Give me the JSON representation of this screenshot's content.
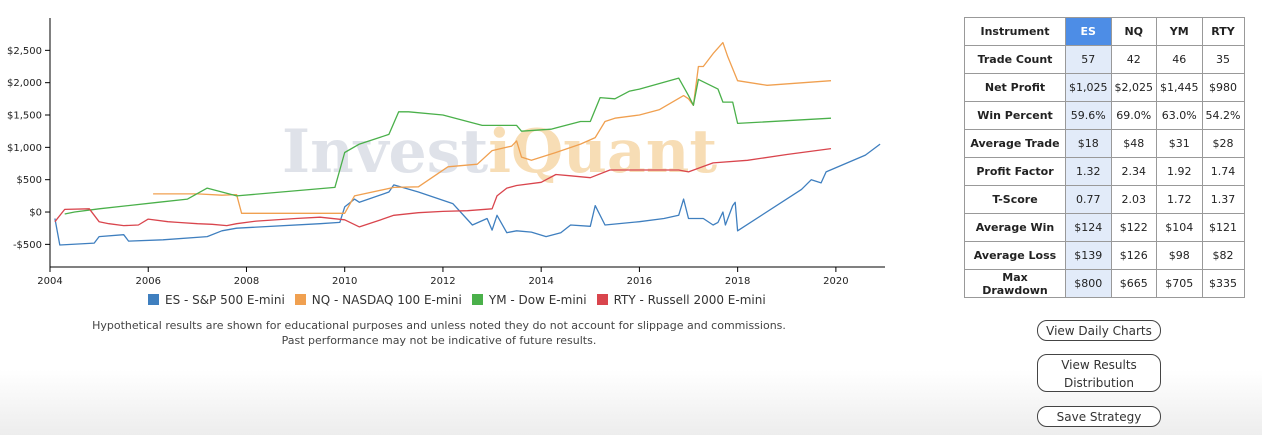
{
  "watermark": {
    "part1": "Invest",
    "part2": "iQuant"
  },
  "chart_data": {
    "type": "line",
    "title": "",
    "xlabel": "",
    "ylabel": "",
    "xlim": [
      2004,
      2021
    ],
    "ylim": [
      -850,
      3000
    ],
    "x_ticks": [
      2004,
      2006,
      2008,
      2010,
      2012,
      2014,
      2016,
      2018,
      2020
    ],
    "y_ticks": [
      -500,
      0,
      500,
      1000,
      1500,
      2000,
      2500
    ],
    "y_tick_labels": [
      "-$500",
      "$0",
      "$500",
      "$1,000",
      "$1,500",
      "$2,000",
      "$2,500"
    ],
    "grid": false,
    "legend_position": "bottom",
    "series": [
      {
        "name": "ES - S&P 500 E-mini",
        "color": "#3f7fbf",
        "points": [
          [
            2004.1,
            -100
          ],
          [
            2004.2,
            -510
          ],
          [
            2004.9,
            -480
          ],
          [
            2005.0,
            -380
          ],
          [
            2005.5,
            -350
          ],
          [
            2005.6,
            -450
          ],
          [
            2006.3,
            -430
          ],
          [
            2007.2,
            -380
          ],
          [
            2007.5,
            -290
          ],
          [
            2007.8,
            -250
          ],
          [
            2009.5,
            -180
          ],
          [
            2009.9,
            -160
          ],
          [
            2010.0,
            80
          ],
          [
            2010.2,
            200
          ],
          [
            2010.3,
            150
          ],
          [
            2010.9,
            310
          ],
          [
            2011.0,
            420
          ],
          [
            2011.5,
            310
          ],
          [
            2012.2,
            130
          ],
          [
            2012.6,
            -200
          ],
          [
            2012.9,
            -100
          ],
          [
            2013.0,
            -280
          ],
          [
            2013.1,
            -50
          ],
          [
            2013.3,
            -320
          ],
          [
            2013.5,
            -290
          ],
          [
            2013.8,
            -310
          ],
          [
            2014.1,
            -380
          ],
          [
            2014.4,
            -320
          ],
          [
            2014.6,
            -200
          ],
          [
            2015.0,
            -220
          ],
          [
            2015.1,
            100
          ],
          [
            2015.3,
            -200
          ],
          [
            2016.0,
            -150
          ],
          [
            2016.5,
            -100
          ],
          [
            2016.8,
            -50
          ],
          [
            2016.9,
            200
          ],
          [
            2017.0,
            -100
          ],
          [
            2017.3,
            -100
          ],
          [
            2017.5,
            -200
          ],
          [
            2017.6,
            -160
          ],
          [
            2017.7,
            0
          ],
          [
            2017.75,
            -200
          ],
          [
            2017.9,
            100
          ],
          [
            2017.95,
            150
          ],
          [
            2018.0,
            -290
          ],
          [
            2019.3,
            350
          ],
          [
            2019.5,
            500
          ],
          [
            2019.7,
            450
          ],
          [
            2019.8,
            620
          ],
          [
            2020.6,
            880
          ],
          [
            2020.9,
            1050
          ]
        ]
      },
      {
        "name": "NQ - NASDAQ 100 E-mini",
        "color": "#f0a050",
        "points": [
          [
            2006.1,
            280
          ],
          [
            2007.0,
            280
          ],
          [
            2007.5,
            260
          ],
          [
            2007.8,
            270
          ],
          [
            2007.9,
            -20
          ],
          [
            2010.0,
            -20
          ],
          [
            2010.2,
            250
          ],
          [
            2011.0,
            380
          ],
          [
            2011.5,
            390
          ],
          [
            2012.1,
            700
          ],
          [
            2012.7,
            740
          ],
          [
            2013.0,
            950
          ],
          [
            2013.4,
            1020
          ],
          [
            2013.5,
            1100
          ],
          [
            2013.6,
            850
          ],
          [
            2013.8,
            800
          ],
          [
            2014.3,
            920
          ],
          [
            2014.8,
            1050
          ],
          [
            2015.1,
            1150
          ],
          [
            2015.3,
            1400
          ],
          [
            2015.5,
            1450
          ],
          [
            2016.0,
            1500
          ],
          [
            2016.4,
            1580
          ],
          [
            2016.9,
            1800
          ],
          [
            2017.0,
            1750
          ],
          [
            2017.1,
            1650
          ],
          [
            2017.2,
            2250
          ],
          [
            2017.3,
            2250
          ],
          [
            2017.5,
            2450
          ],
          [
            2017.7,
            2620
          ],
          [
            2017.8,
            2400
          ],
          [
            2018.0,
            2030
          ],
          [
            2018.6,
            1960
          ],
          [
            2019.9,
            2030
          ]
        ]
      },
      {
        "name": "YM - Dow E-mini",
        "color": "#4ab04a",
        "points": [
          [
            2004.3,
            -30
          ],
          [
            2004.5,
            0
          ],
          [
            2005.0,
            50
          ],
          [
            2006.2,
            150
          ],
          [
            2006.8,
            200
          ],
          [
            2007.2,
            370
          ],
          [
            2007.8,
            250
          ],
          [
            2009.8,
            380
          ],
          [
            2010.0,
            920
          ],
          [
            2010.3,
            1050
          ],
          [
            2010.9,
            1200
          ],
          [
            2011.1,
            1550
          ],
          [
            2011.3,
            1550
          ],
          [
            2012.0,
            1500
          ],
          [
            2012.8,
            1340
          ],
          [
            2013.5,
            1340
          ],
          [
            2013.6,
            1250
          ],
          [
            2014.2,
            1280
          ],
          [
            2014.8,
            1400
          ],
          [
            2015.0,
            1400
          ],
          [
            2015.2,
            1770
          ],
          [
            2015.5,
            1750
          ],
          [
            2015.8,
            1870
          ],
          [
            2016.0,
            1900
          ],
          [
            2016.8,
            2070
          ],
          [
            2017.0,
            1800
          ],
          [
            2017.1,
            1650
          ],
          [
            2017.2,
            2050
          ],
          [
            2017.6,
            1900
          ],
          [
            2017.7,
            1700
          ],
          [
            2017.9,
            1700
          ],
          [
            2018.0,
            1370
          ],
          [
            2019.9,
            1450
          ]
        ]
      },
      {
        "name": "RTY - Russell 2000 E-mini",
        "color": "#d9454d",
        "points": [
          [
            2004.1,
            -150
          ],
          [
            2004.3,
            40
          ],
          [
            2004.8,
            50
          ],
          [
            2005.0,
            -150
          ],
          [
            2005.2,
            -180
          ],
          [
            2005.5,
            -210
          ],
          [
            2005.8,
            -200
          ],
          [
            2006.0,
            -110
          ],
          [
            2006.4,
            -150
          ],
          [
            2006.6,
            -160
          ],
          [
            2007.0,
            -180
          ],
          [
            2007.3,
            -190
          ],
          [
            2007.6,
            -210
          ],
          [
            2007.8,
            -180
          ],
          [
            2008.2,
            -140
          ],
          [
            2009.0,
            -100
          ],
          [
            2009.5,
            -80
          ],
          [
            2010.0,
            -120
          ],
          [
            2010.3,
            -230
          ],
          [
            2010.7,
            -130
          ],
          [
            2011.0,
            -50
          ],
          [
            2011.5,
            -10
          ],
          [
            2012.0,
            10
          ],
          [
            2012.5,
            20
          ],
          [
            2013.0,
            50
          ],
          [
            2013.1,
            250
          ],
          [
            2013.3,
            370
          ],
          [
            2013.5,
            410
          ],
          [
            2014.0,
            460
          ],
          [
            2014.3,
            580
          ],
          [
            2014.6,
            560
          ],
          [
            2015.0,
            530
          ],
          [
            2015.4,
            650
          ],
          [
            2016.8,
            650
          ],
          [
            2017.0,
            620
          ],
          [
            2017.5,
            760
          ],
          [
            2018.2,
            800
          ],
          [
            2019.0,
            890
          ],
          [
            2019.9,
            980
          ]
        ]
      }
    ]
  },
  "table": {
    "columns": [
      "Instrument",
      "ES",
      "NQ",
      "YM",
      "RTY"
    ],
    "rows": [
      {
        "label": "Trade Count",
        "values": [
          "57",
          "42",
          "46",
          "35"
        ]
      },
      {
        "label": "Net Profit",
        "values": [
          "$1,025",
          "$2,025",
          "$1,445",
          "$980"
        ]
      },
      {
        "label": "Win Percent",
        "values": [
          "59.6%",
          "69.0%",
          "63.0%",
          "54.2%"
        ]
      },
      {
        "label": "Average Trade",
        "values": [
          "$18",
          "$48",
          "$31",
          "$28"
        ]
      },
      {
        "label": "Profit Factor",
        "values": [
          "1.32",
          "2.34",
          "1.92",
          "1.74"
        ]
      },
      {
        "label": "T-Score",
        "values": [
          "0.77",
          "2.03",
          "1.72",
          "1.37"
        ]
      },
      {
        "label": "Average Win",
        "values": [
          "$124",
          "$122",
          "$104",
          "$121"
        ]
      },
      {
        "label": "Average Loss",
        "values": [
          "$139",
          "$126",
          "$98",
          "$82"
        ]
      },
      {
        "label": "Max Drawdown",
        "values": [
          "$800",
          "$665",
          "$705",
          "$335"
        ]
      }
    ]
  },
  "disclaimer": {
    "line1": "Hypothetical results are shown for educational purposes and unless noted they do not account for slippage and commissions.",
    "line2": "Past performance may not be indicative of future results."
  },
  "buttons": {
    "daily": "View Daily Charts",
    "distribution": "View Results Distribution",
    "save": "Save Strategy"
  }
}
